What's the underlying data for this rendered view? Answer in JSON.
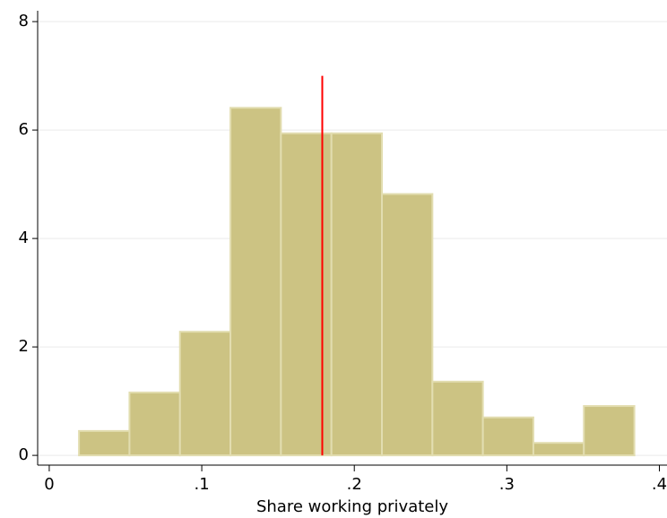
{
  "chart_data": {
    "type": "histogram",
    "x_label": "Share working privately",
    "bins": [
      0.0195,
      0.0526,
      0.0857,
      0.1188,
      0.1519,
      0.185,
      0.2181,
      0.2512,
      0.2843,
      0.3174,
      0.3505,
      0.3836
    ],
    "values": [
      0.45,
      1.16,
      2.28,
      6.41,
      5.94,
      5.94,
      4.82,
      1.36,
      0.7,
      0.23,
      0.91
    ],
    "color": "#ccc383",
    "edge_color": "#e2ddb0",
    "xlim": [
      -0.0076,
      0.405
    ],
    "ylim": [
      -0.18,
      8.2
    ],
    "xticks": [
      0,
      {
        "value": 0.1,
        "label": ".1"
      },
      {
        "value": 0.2,
        "label": ".2"
      },
      {
        "value": 0.3,
        "label": ".3"
      },
      {
        "value": 0.4,
        "label": ".4"
      }
    ],
    "yticks": [
      0,
      2,
      4,
      6,
      8
    ],
    "grid": true,
    "vline": {
      "x": 0.179,
      "top": 7,
      "color": "#ff0000"
    }
  }
}
